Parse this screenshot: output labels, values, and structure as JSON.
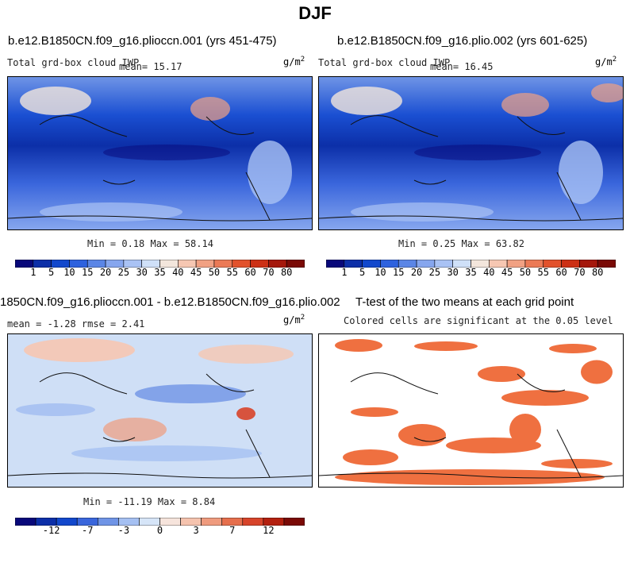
{
  "title": "DJF",
  "panels": [
    {
      "title": "b.e12.B1850CN.f09_g16.plioccn.001 (yrs 451-475)",
      "left_text": "Total grd-box cloud IWP",
      "mean_text": "mean=  15.17",
      "units": "g/m",
      "units_exp": "2",
      "minmax": "Min =   0.18 Max =  58.14"
    },
    {
      "title": "b.e12.B1850CN.f09_g16.plio.002 (yrs 601-625)",
      "left_text": "Total grd-box cloud IWP",
      "mean_text": "mean=  16.45",
      "units": "g/m",
      "units_exp": "2",
      "minmax": "Min =   0.25 Max =  63.82"
    },
    {
      "title": "1850CN.f09_g16.plioccn.001 - b.e12.B1850CN.f09_g16.plio.002",
      "left_text": "mean =  -1.28    rmse =   2.41",
      "units": "g/m",
      "units_exp": "2",
      "minmax": "Min = -11.19 Max =   8.84"
    },
    {
      "title": "T-test of the two means at each grid point",
      "left_text": "Colored cells are significant at the 0.05 level"
    }
  ],
  "colorbar_top": {
    "colors": [
      "#08087a",
      "#0c2fa8",
      "#1248cc",
      "#2e62de",
      "#5b86e6",
      "#86a6ee",
      "#a9c2f4",
      "#cfe0f8",
      "#f3e6dc",
      "#f6c7b2",
      "#f1a183",
      "#eb7a56",
      "#e2522c",
      "#cc3015",
      "#a5180c",
      "#7a0a06"
    ],
    "labels": [
      "1",
      "5",
      "10",
      "15",
      "20",
      "25",
      "30",
      "35",
      "40",
      "45",
      "50",
      "55",
      "60",
      "70",
      "80"
    ]
  },
  "colorbar_diff": {
    "colors": [
      "#08087a",
      "#0c2fa8",
      "#1248cc",
      "#3a66dc",
      "#6f94e6",
      "#a5c0f2",
      "#d6e5f8",
      "#f6e4dc",
      "#f5c3ae",
      "#ef9b7e",
      "#e66f4d",
      "#d7442a",
      "#b3200f",
      "#7a0a06"
    ],
    "labels": [
      "-12",
      "-7",
      "-3",
      "0",
      "3",
      "7",
      "12"
    ]
  },
  "ttest_color": "#ef7040"
}
